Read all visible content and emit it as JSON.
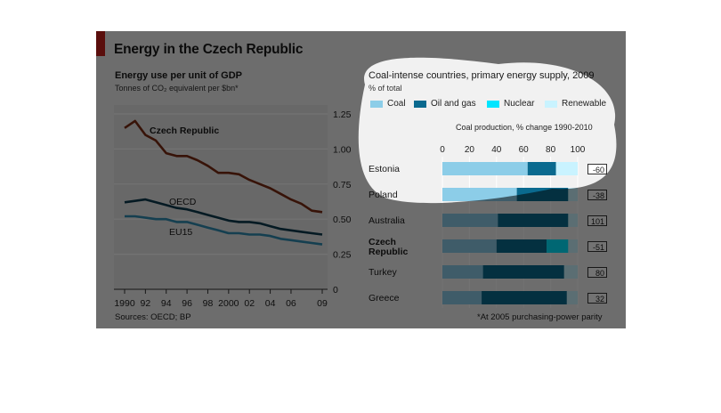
{
  "figure": {
    "title": "Energy in the Czech Republic",
    "source": "Sources: OECD; BP",
    "footnote": "*At 2005 purchasing-power parity",
    "accent_color": "#c8211b"
  },
  "chart_data": [
    {
      "type": "line",
      "title": "Energy use per unit of GDP",
      "subtitle": "Tonnes of CO₂ equivalent per $bn*",
      "x": [
        1990,
        1991,
        1992,
        1993,
        1994,
        1995,
        1996,
        1997,
        1998,
        1999,
        2000,
        2001,
        2002,
        2003,
        2004,
        2005,
        2006,
        2007,
        2008,
        2009
      ],
      "x_tick_labels": [
        "1990",
        "92",
        "94",
        "96",
        "98",
        "2000",
        "02",
        "04",
        "06",
        "09"
      ],
      "x_tick_values": [
        1990,
        1992,
        1994,
        1996,
        1998,
        2000,
        2002,
        2004,
        2006,
        2009
      ],
      "ylim": [
        0,
        1.25
      ],
      "y_ticks": [
        0,
        0.25,
        0.5,
        0.75,
        1.0,
        1.25
      ],
      "y_tick_labels": [
        "0",
        "0.25",
        "0.50",
        "0.75",
        "1.00",
        "1.25"
      ],
      "grid": true,
      "series": [
        {
          "name": "Czech Republic",
          "color": "#7b2a12",
          "values": [
            1.15,
            1.2,
            1.1,
            1.06,
            0.97,
            0.95,
            0.95,
            0.92,
            0.88,
            0.83,
            0.83,
            0.82,
            0.78,
            0.75,
            0.72,
            0.68,
            0.64,
            0.61,
            0.56,
            0.55
          ]
        },
        {
          "name": "OECD",
          "color": "#0d3b4f",
          "values": [
            0.62,
            0.63,
            0.64,
            0.62,
            0.6,
            0.58,
            0.57,
            0.55,
            0.53,
            0.51,
            0.49,
            0.48,
            0.48,
            0.47,
            0.45,
            0.43,
            0.42,
            0.41,
            0.4,
            0.39
          ]
        },
        {
          "name": "EU15",
          "color": "#2f8db2",
          "values": [
            0.52,
            0.52,
            0.51,
            0.5,
            0.5,
            0.48,
            0.48,
            0.46,
            0.44,
            0.42,
            0.4,
            0.4,
            0.39,
            0.39,
            0.38,
            0.36,
            0.35,
            0.34,
            0.33,
            0.32
          ]
        }
      ]
    },
    {
      "type": "bar",
      "orientation": "horizontal",
      "stacked": true,
      "title": "Coal-intense countries, primary energy supply, 2009",
      "subtitle": "% of total",
      "xlim": [
        0,
        100
      ],
      "x_ticks": [
        0,
        20,
        40,
        60,
        80,
        100
      ],
      "categories": [
        "Estonia",
        "Poland",
        "Australia",
        "Czech Republic",
        "Turkey",
        "Greece"
      ],
      "series": [
        {
          "name": "Coal",
          "color": "#8ccde8",
          "values": [
            63,
            55,
            41,
            40,
            30,
            29
          ]
        },
        {
          "name": "Oil and gas",
          "color": "#0a6a8f",
          "values": [
            21,
            38,
            52,
            37,
            60,
            63
          ]
        },
        {
          "name": "Nuclear",
          "color": "#00e5ff",
          "values": [
            0,
            0,
            0,
            16,
            0,
            0
          ]
        },
        {
          "name": "Renewable",
          "color": "#c9f3ff",
          "values": [
            16,
            7,
            7,
            7,
            10,
            8
          ]
        }
      ],
      "coal_production_label": "Coal production, % change 1990-2010",
      "coal_production": [
        "-60",
        "-38",
        "101",
        "-51",
        "80",
        "32"
      ]
    }
  ]
}
